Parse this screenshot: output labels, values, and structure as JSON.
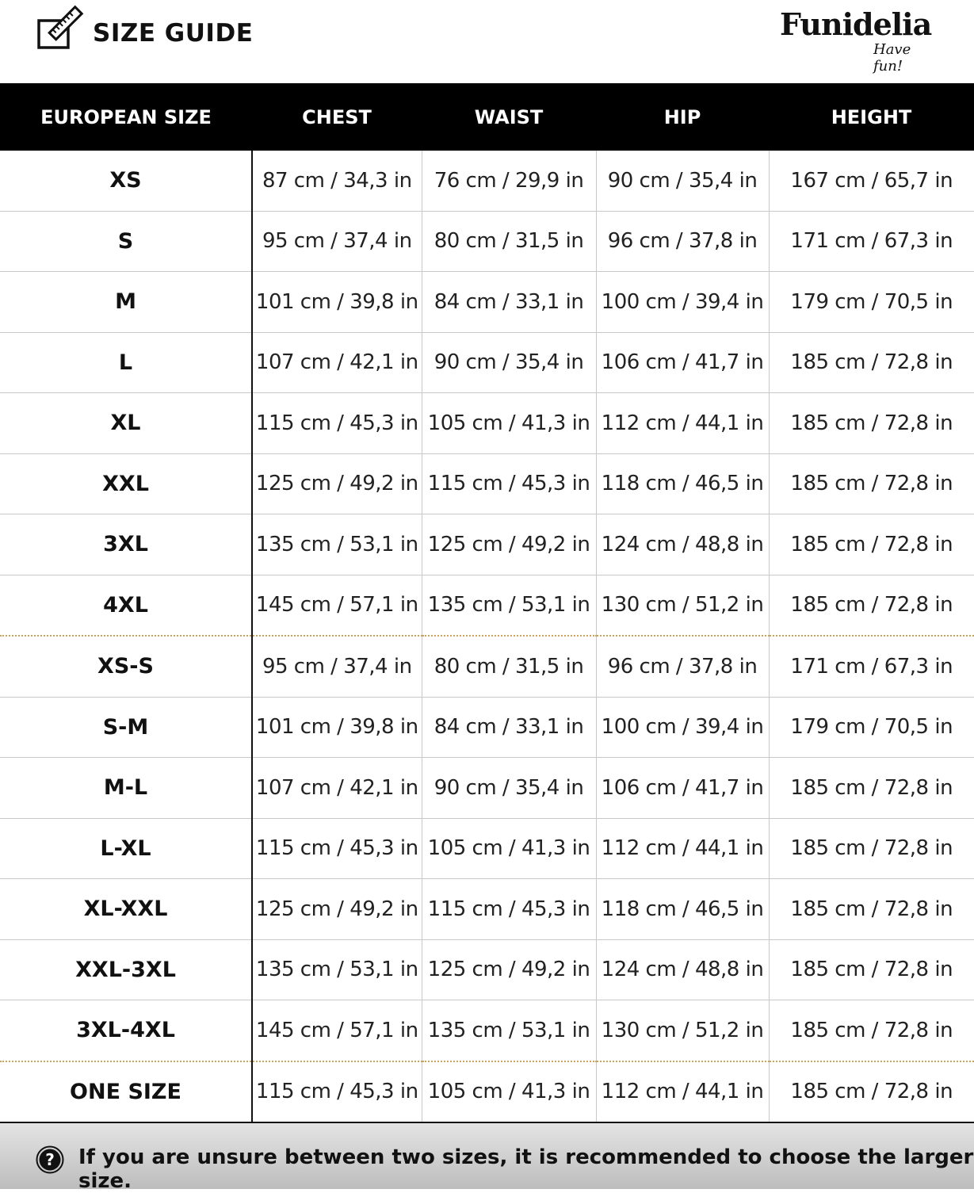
{
  "header": {
    "title": "SIZE GUIDE",
    "logo_text": "Funidelia",
    "logo_tagline": "Have fun!",
    "icon": "ruler-checkbox-icon"
  },
  "table": {
    "columns": [
      "EUROPEAN SIZE",
      "CHEST",
      "WAIST",
      "HIP",
      "HEIGHT"
    ],
    "rows": [
      {
        "size": "XS",
        "chest": "87 cm / 34,3 in",
        "waist": "76 cm / 29,9 in",
        "hip": "90 cm / 35,4 in",
        "height": "167 cm / 65,7 in"
      },
      {
        "size": "S",
        "chest": "95 cm / 37,4 in",
        "waist": "80 cm / 31,5 in",
        "hip": "96 cm / 37,8 in",
        "height": "171 cm / 67,3 in"
      },
      {
        "size": "M",
        "chest": "101 cm / 39,8 in",
        "waist": "84 cm / 33,1 in",
        "hip": "100 cm / 39,4 in",
        "height": "179 cm / 70,5 in"
      },
      {
        "size": "L",
        "chest": "107 cm / 42,1 in",
        "waist": "90 cm / 35,4 in",
        "hip": "106 cm / 41,7 in",
        "height": "185 cm / 72,8 in"
      },
      {
        "size": "XL",
        "chest": "115 cm / 45,3 in",
        "waist": "105 cm / 41,3 in",
        "hip": "112 cm / 44,1 in",
        "height": "185 cm / 72,8 in"
      },
      {
        "size": "XXL",
        "chest": "125 cm / 49,2 in",
        "waist": "115 cm / 45,3 in",
        "hip": "118 cm / 46,5 in",
        "height": "185 cm / 72,8 in"
      },
      {
        "size": "3XL",
        "chest": "135 cm / 53,1 in",
        "waist": "125 cm / 49,2 in",
        "hip": "124 cm / 48,8 in",
        "height": "185 cm / 72,8 in"
      },
      {
        "size": "4XL",
        "chest": "145 cm / 57,1 in",
        "waist": "135 cm / 53,1 in",
        "hip": "130 cm / 51,2 in",
        "height": "185 cm / 72,8 in",
        "group_end": true
      },
      {
        "size": "XS-S",
        "chest": "95 cm / 37,4 in",
        "waist": "80 cm / 31,5 in",
        "hip": "96 cm / 37,8 in",
        "height": "171 cm / 67,3 in"
      },
      {
        "size": "S-M",
        "chest": "101 cm / 39,8 in",
        "waist": "84 cm / 33,1 in",
        "hip": "100 cm / 39,4 in",
        "height": "179 cm / 70,5 in"
      },
      {
        "size": "M-L",
        "chest": "107 cm / 42,1 in",
        "waist": "90 cm / 35,4 in",
        "hip": "106 cm / 41,7 in",
        "height": "185 cm / 72,8 in"
      },
      {
        "size": "L-XL",
        "chest": "115 cm / 45,3 in",
        "waist": "105 cm / 41,3 in",
        "hip": "112 cm / 44,1 in",
        "height": "185 cm / 72,8 in"
      },
      {
        "size": "XL-XXL",
        "chest": "125 cm / 49,2 in",
        "waist": "115 cm / 45,3 in",
        "hip": "118 cm / 46,5 in",
        "height": "185 cm / 72,8 in"
      },
      {
        "size": "XXL-3XL",
        "chest": "135 cm / 53,1 in",
        "waist": "125 cm / 49,2 in",
        "hip": "124 cm / 48,8 in",
        "height": "185 cm / 72,8 in"
      },
      {
        "size": "3XL-4XL",
        "chest": "145 cm / 57,1 in",
        "waist": "135 cm / 53,1 in",
        "hip": "130 cm / 51,2 in",
        "height": "185 cm / 72,8 in",
        "group_end": true
      },
      {
        "size": "ONE SIZE",
        "chest": "115 cm / 45,3 in",
        "waist": "105 cm / 41,3 in",
        "hip": "112 cm / 44,1 in",
        "height": "185 cm / 72,8 in"
      }
    ]
  },
  "footer": {
    "icon": "question-circle-icon",
    "text": "If you are unsure between two sizes, it is recommended to choose the larger size."
  },
  "colors": {
    "header_bg": "#000000",
    "separator_dotted": "#c9a45c",
    "footer_bg": "#d0d0d0"
  }
}
